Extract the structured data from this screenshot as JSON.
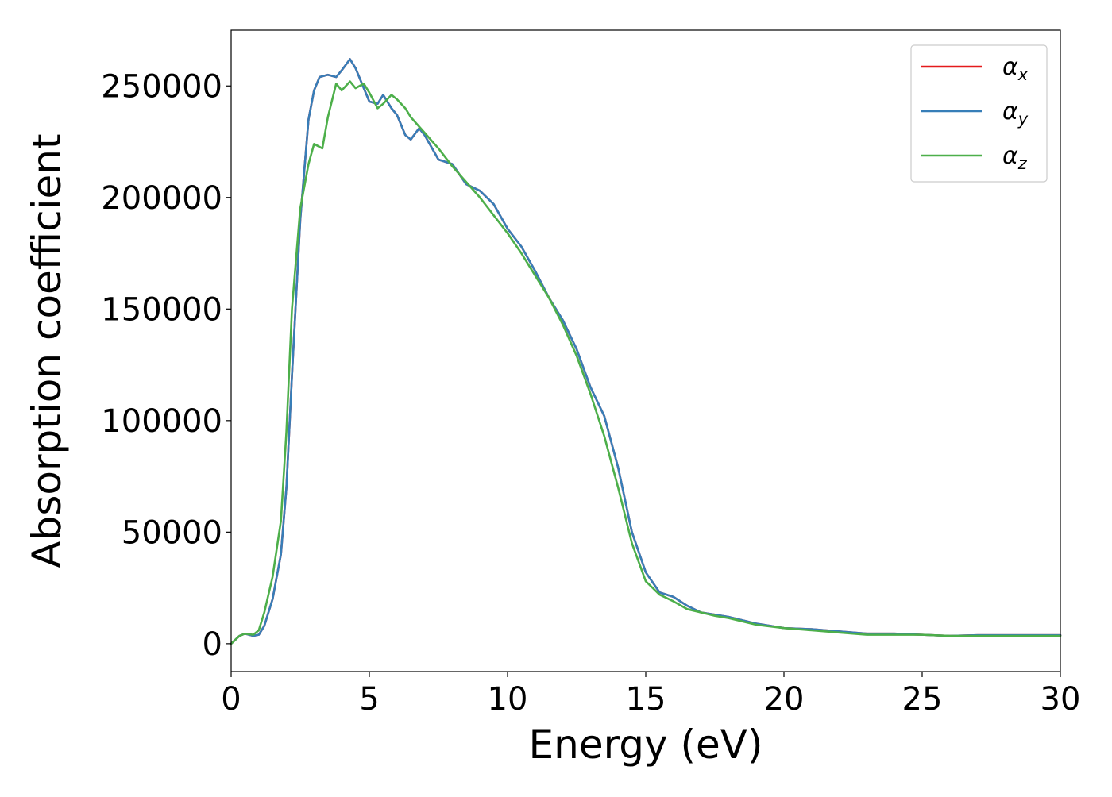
{
  "chart_data": {
    "type": "line",
    "title": "",
    "xlabel": "Energy (eV)",
    "ylabel": "Absorption coefficient",
    "xlim": [
      0,
      30
    ],
    "ylim": [
      -12500,
      275000
    ],
    "xticks": [
      0,
      5,
      10,
      15,
      20,
      25,
      30
    ],
    "xtick_labels": [
      "0",
      "5",
      "10",
      "15",
      "20",
      "25",
      "30"
    ],
    "yticks": [
      0,
      50000,
      100000,
      150000,
      200000,
      250000
    ],
    "ytick_labels": [
      "0",
      "50000",
      "100000",
      "150000",
      "200000",
      "250000"
    ],
    "grid": false,
    "legend_position": "top-right",
    "series": [
      {
        "name": "α_x",
        "legend_symbol": "α",
        "legend_subscript": "x",
        "color": "#e41a1c",
        "x": [
          0,
          0.3,
          0.5,
          0.8,
          1.0,
          1.2,
          1.5,
          1.8,
          2.0,
          2.2,
          2.5,
          2.8,
          3.0,
          3.2,
          3.5,
          3.8,
          4.0,
          4.3,
          4.5,
          4.8,
          5.0,
          5.3,
          5.5,
          5.8,
          6.0,
          6.3,
          6.5,
          6.8,
          7.0,
          7.5,
          8.0,
          8.5,
          9.0,
          9.5,
          10.0,
          10.5,
          11.0,
          11.5,
          12.0,
          12.5,
          13.0,
          13.5,
          14.0,
          14.5,
          15.0,
          15.5,
          16.0,
          16.5,
          17.0,
          17.5,
          18.0,
          19.0,
          20.0,
          21.0,
          22.0,
          23.0,
          24.0,
          25.0,
          26.0,
          27.0,
          28.0,
          29.0,
          30.0
        ],
        "y": [
          0,
          3500,
          4500,
          3500,
          4000,
          8000,
          20000,
          40000,
          70000,
          120000,
          190000,
          235000,
          248000,
          254000,
          255000,
          254000,
          257000,
          262000,
          258000,
          249000,
          243000,
          242000,
          246000,
          240000,
          237000,
          228000,
          226000,
          231000,
          228000,
          217000,
          215000,
          206000,
          203000,
          197000,
          186000,
          178000,
          167000,
          155000,
          145000,
          132000,
          115000,
          102000,
          79000,
          50000,
          32000,
          23000,
          21000,
          17000,
          14000,
          13000,
          12000,
          9000,
          7000,
          6500,
          5500,
          4500,
          4500,
          4000,
          3500,
          3800,
          3800,
          3800,
          3800
        ]
      },
      {
        "name": "α_y",
        "legend_symbol": "α",
        "legend_subscript": "y",
        "color": "#377eb8",
        "x": [
          0,
          0.3,
          0.5,
          0.8,
          1.0,
          1.2,
          1.5,
          1.8,
          2.0,
          2.2,
          2.5,
          2.8,
          3.0,
          3.2,
          3.5,
          3.8,
          4.0,
          4.3,
          4.5,
          4.8,
          5.0,
          5.3,
          5.5,
          5.8,
          6.0,
          6.3,
          6.5,
          6.8,
          7.0,
          7.5,
          8.0,
          8.5,
          9.0,
          9.5,
          10.0,
          10.5,
          11.0,
          11.5,
          12.0,
          12.5,
          13.0,
          13.5,
          14.0,
          14.5,
          15.0,
          15.5,
          16.0,
          16.5,
          17.0,
          17.5,
          18.0,
          19.0,
          20.0,
          21.0,
          22.0,
          23.0,
          24.0,
          25.0,
          26.0,
          27.0,
          28.0,
          29.0,
          30.0
        ],
        "y": [
          0,
          3500,
          4500,
          3500,
          4000,
          8000,
          20000,
          40000,
          70000,
          120000,
          190000,
          235000,
          248000,
          254000,
          255000,
          254000,
          257000,
          262000,
          258000,
          249000,
          243000,
          242000,
          246000,
          240000,
          237000,
          228000,
          226000,
          231000,
          228000,
          217000,
          215000,
          206000,
          203000,
          197000,
          186000,
          178000,
          167000,
          155000,
          145000,
          132000,
          115000,
          102000,
          79000,
          50000,
          32000,
          23000,
          21000,
          17000,
          14000,
          13000,
          12000,
          9000,
          7000,
          6500,
          5500,
          4500,
          4500,
          4000,
          3500,
          3800,
          3800,
          3800,
          3800
        ]
      },
      {
        "name": "α_z",
        "legend_symbol": "α",
        "legend_subscript": "z",
        "color": "#4daf4a",
        "x": [
          0,
          0.3,
          0.5,
          0.8,
          1.0,
          1.2,
          1.5,
          1.8,
          2.0,
          2.2,
          2.5,
          2.8,
          3.0,
          3.3,
          3.5,
          3.8,
          4.0,
          4.3,
          4.5,
          4.8,
          5.0,
          5.3,
          5.5,
          5.8,
          6.0,
          6.3,
          6.5,
          7.0,
          7.5,
          8.0,
          8.5,
          9.0,
          9.5,
          10.0,
          10.5,
          11.0,
          11.5,
          12.0,
          12.5,
          13.0,
          13.5,
          14.0,
          14.5,
          15.0,
          15.5,
          16.0,
          16.5,
          17.0,
          17.5,
          18.0,
          19.0,
          20.0,
          21.0,
          22.0,
          23.0,
          24.0,
          25.0,
          26.0,
          27.0,
          28.0,
          29.0,
          30.0
        ],
        "y": [
          0,
          3500,
          4500,
          4000,
          6000,
          14000,
          30000,
          55000,
          95000,
          150000,
          195000,
          215000,
          224000,
          222000,
          236000,
          251000,
          248000,
          252000,
          249000,
          251000,
          247000,
          240000,
          242000,
          246000,
          244000,
          240000,
          236000,
          229000,
          222000,
          214000,
          207000,
          200000,
          192000,
          184000,
          175000,
          165000,
          155000,
          143000,
          129000,
          112000,
          93000,
          70000,
          45000,
          28000,
          22000,
          19000,
          15500,
          14000,
          12500,
          11500,
          8500,
          7000,
          6000,
          5000,
          4000,
          4000,
          4000,
          3500,
          3500,
          3500,
          3500,
          3500
        ]
      }
    ]
  }
}
